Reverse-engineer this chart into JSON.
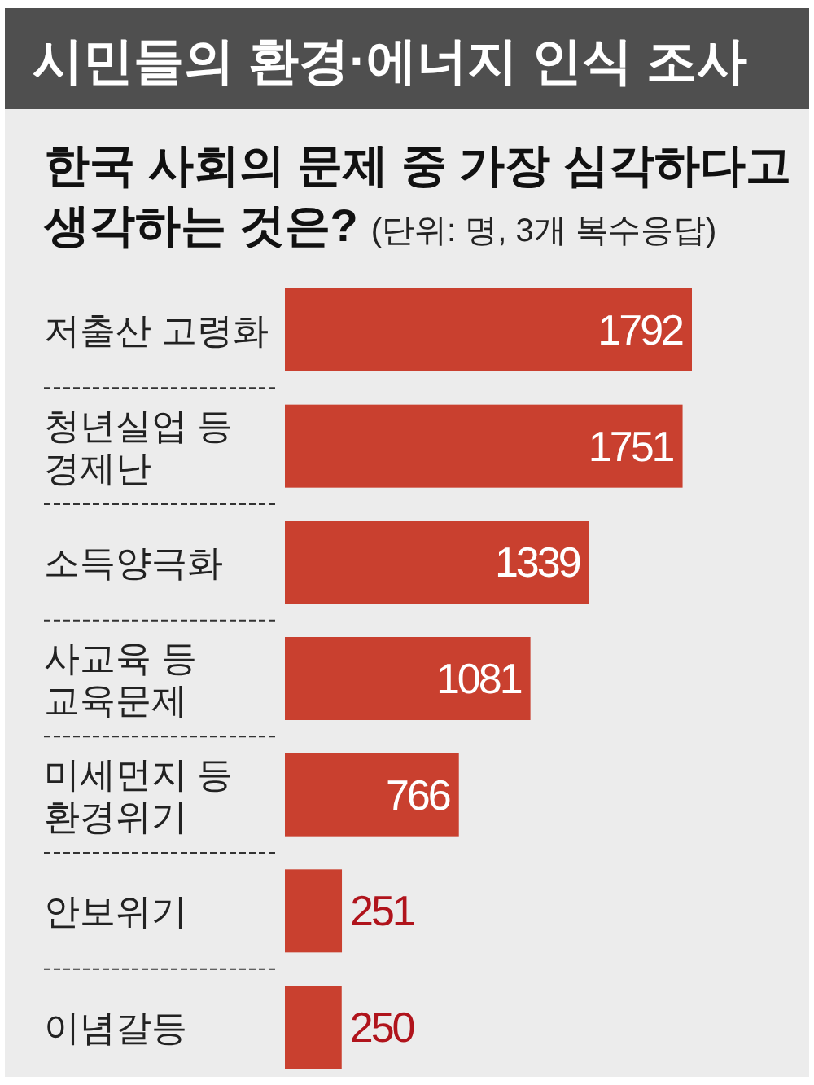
{
  "chart_data": {
    "type": "bar",
    "orientation": "horizontal",
    "title": "시민들의 환경·에너지 인식 조사",
    "subtitle": "한국 사회의 문제 중 가장 심각하다고 생각하는 것은?",
    "annotations": [
      "(단위: 명, 3개 복수응답)"
    ],
    "categories": [
      "저출산 고령화",
      "청년실업 등 경제난",
      "소득양극화",
      "사교육 등 교육문제",
      "미세먼지 등 환경위기",
      "안보위기",
      "이념갈등"
    ],
    "values": [
      1792,
      1751,
      1339,
      1081,
      766,
      251,
      250
    ],
    "color": "#c9402f",
    "data_labels": true
  }
}
